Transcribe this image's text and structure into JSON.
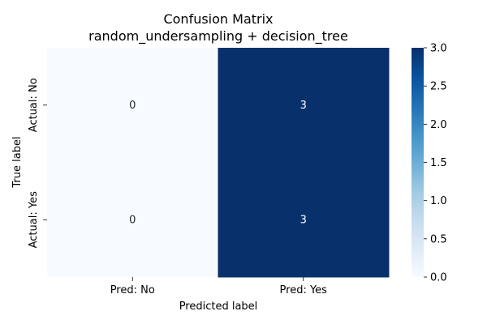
{
  "chart_data": {
    "type": "heatmap",
    "title": "Confusion Matrix",
    "subtitle": "random_undersampling + decision_tree",
    "xlabel": "Predicted label",
    "ylabel": "True label",
    "x_categories": [
      "Pred: No",
      "Pred: Yes"
    ],
    "y_categories": [
      "Actual: No",
      "Actual: Yes"
    ],
    "values": [
      [
        0,
        3
      ],
      [
        0,
        3
      ]
    ],
    "colormap": "Blues",
    "color_low": "#f7fbff",
    "color_high": "#08306b",
    "colorbar": {
      "range": [
        0,
        3
      ],
      "ticks": [
        "0.0",
        "0.5",
        "1.0",
        "1.5",
        "2.0",
        "2.5",
        "3.0"
      ]
    }
  }
}
